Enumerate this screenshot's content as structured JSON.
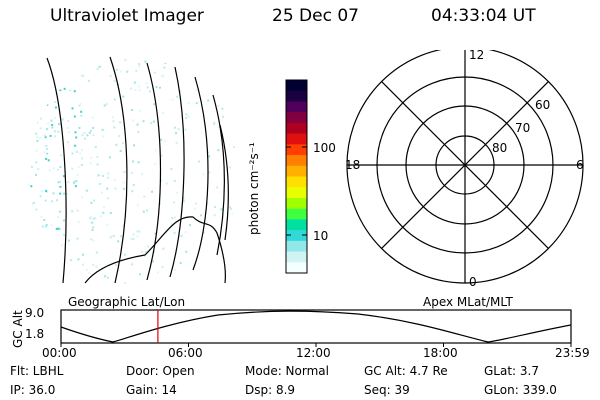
{
  "header": {
    "instrument": "Ultraviolet Imager",
    "date": "25 Dec 07",
    "time": "04:33:04 UT"
  },
  "colorbar": {
    "unit_label": "photon cm⁻²s⁻¹",
    "ticks": [
      "100",
      "10"
    ],
    "colors": [
      "#000033",
      "#1a0040",
      "#50005a",
      "#800040",
      "#b00020",
      "#e01010",
      "#ff4000",
      "#ff8000",
      "#ffb000",
      "#ffe000",
      "#e8ff00",
      "#a0ff00",
      "#40ff40",
      "#00e0a0",
      "#30d8d8",
      "#90e8e8",
      "#d0f4f4",
      "#f4ffff"
    ]
  },
  "polar": {
    "mlt_labels": {
      "top": "12",
      "bottom": "0",
      "left": "18",
      "right": "6"
    },
    "lat_labels": [
      "60",
      "70",
      "80"
    ]
  },
  "timeline": {
    "left_label": "Geographic Lat/Lon",
    "right_label": "Apex  MLat/MLT",
    "axis_label": "GC Alt",
    "y_ticks": [
      "9.0",
      "1.8"
    ],
    "x_ticks": [
      "00:00",
      "06:00",
      "12:00",
      "18:00",
      "23:59"
    ],
    "current_time_fraction": 0.19
  },
  "info": {
    "flt": "Flt: LBHL",
    "ip": "IP: 36.0",
    "door": "Door: Open",
    "gain": "Gain: 14",
    "mode": "Mode: Normal",
    "dsp": "Dsp:     8.9",
    "gcalt": "GC Alt: 4.7 Re",
    "seq": "Seq: 39",
    "glat": "GLat:     3.7",
    "glon": "GLon: 339.0"
  },
  "colors": {
    "marker": "#e00000",
    "emission": "#40d0d0"
  }
}
